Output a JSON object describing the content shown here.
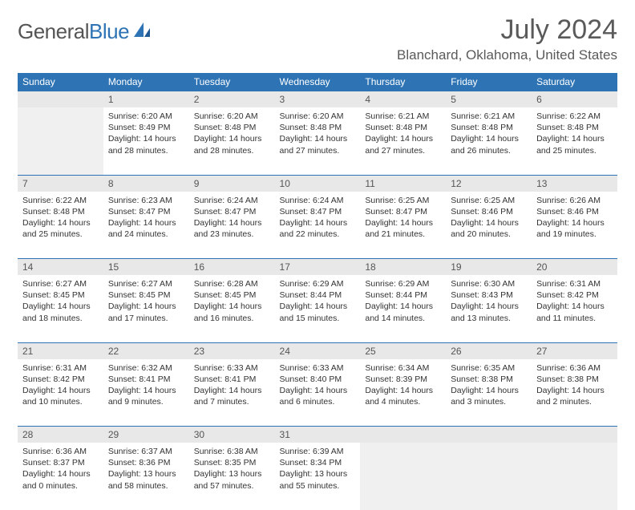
{
  "brand": {
    "text1": "General",
    "text2": "Blue"
  },
  "title": "July 2024",
  "location": "Blanchard, Oklahoma, United States",
  "days": [
    "Sunday",
    "Monday",
    "Tuesday",
    "Wednesday",
    "Thursday",
    "Friday",
    "Saturday"
  ],
  "colors": {
    "header_bg": "#2e74b5",
    "daynum_bg": "#e8e8e8",
    "divider": "#2e74b5"
  },
  "weeks": [
    [
      null,
      {
        "n": "1",
        "sr": "6:20 AM",
        "ss": "8:49 PM",
        "dl": "14 hours and 28 minutes."
      },
      {
        "n": "2",
        "sr": "6:20 AM",
        "ss": "8:48 PM",
        "dl": "14 hours and 28 minutes."
      },
      {
        "n": "3",
        "sr": "6:20 AM",
        "ss": "8:48 PM",
        "dl": "14 hours and 27 minutes."
      },
      {
        "n": "4",
        "sr": "6:21 AM",
        "ss": "8:48 PM",
        "dl": "14 hours and 27 minutes."
      },
      {
        "n": "5",
        "sr": "6:21 AM",
        "ss": "8:48 PM",
        "dl": "14 hours and 26 minutes."
      },
      {
        "n": "6",
        "sr": "6:22 AM",
        "ss": "8:48 PM",
        "dl": "14 hours and 25 minutes."
      }
    ],
    [
      {
        "n": "7",
        "sr": "6:22 AM",
        "ss": "8:48 PM",
        "dl": "14 hours and 25 minutes."
      },
      {
        "n": "8",
        "sr": "6:23 AM",
        "ss": "8:47 PM",
        "dl": "14 hours and 24 minutes."
      },
      {
        "n": "9",
        "sr": "6:24 AM",
        "ss": "8:47 PM",
        "dl": "14 hours and 23 minutes."
      },
      {
        "n": "10",
        "sr": "6:24 AM",
        "ss": "8:47 PM",
        "dl": "14 hours and 22 minutes."
      },
      {
        "n": "11",
        "sr": "6:25 AM",
        "ss": "8:47 PM",
        "dl": "14 hours and 21 minutes."
      },
      {
        "n": "12",
        "sr": "6:25 AM",
        "ss": "8:46 PM",
        "dl": "14 hours and 20 minutes."
      },
      {
        "n": "13",
        "sr": "6:26 AM",
        "ss": "8:46 PM",
        "dl": "14 hours and 19 minutes."
      }
    ],
    [
      {
        "n": "14",
        "sr": "6:27 AM",
        "ss": "8:45 PM",
        "dl": "14 hours and 18 minutes."
      },
      {
        "n": "15",
        "sr": "6:27 AM",
        "ss": "8:45 PM",
        "dl": "14 hours and 17 minutes."
      },
      {
        "n": "16",
        "sr": "6:28 AM",
        "ss": "8:45 PM",
        "dl": "14 hours and 16 minutes."
      },
      {
        "n": "17",
        "sr": "6:29 AM",
        "ss": "8:44 PM",
        "dl": "14 hours and 15 minutes."
      },
      {
        "n": "18",
        "sr": "6:29 AM",
        "ss": "8:44 PM",
        "dl": "14 hours and 14 minutes."
      },
      {
        "n": "19",
        "sr": "6:30 AM",
        "ss": "8:43 PM",
        "dl": "14 hours and 13 minutes."
      },
      {
        "n": "20",
        "sr": "6:31 AM",
        "ss": "8:42 PM",
        "dl": "14 hours and 11 minutes."
      }
    ],
    [
      {
        "n": "21",
        "sr": "6:31 AM",
        "ss": "8:42 PM",
        "dl": "14 hours and 10 minutes."
      },
      {
        "n": "22",
        "sr": "6:32 AM",
        "ss": "8:41 PM",
        "dl": "14 hours and 9 minutes."
      },
      {
        "n": "23",
        "sr": "6:33 AM",
        "ss": "8:41 PM",
        "dl": "14 hours and 7 minutes."
      },
      {
        "n": "24",
        "sr": "6:33 AM",
        "ss": "8:40 PM",
        "dl": "14 hours and 6 minutes."
      },
      {
        "n": "25",
        "sr": "6:34 AM",
        "ss": "8:39 PM",
        "dl": "14 hours and 4 minutes."
      },
      {
        "n": "26",
        "sr": "6:35 AM",
        "ss": "8:38 PM",
        "dl": "14 hours and 3 minutes."
      },
      {
        "n": "27",
        "sr": "6:36 AM",
        "ss": "8:38 PM",
        "dl": "14 hours and 2 minutes."
      }
    ],
    [
      {
        "n": "28",
        "sr": "6:36 AM",
        "ss": "8:37 PM",
        "dl": "14 hours and 0 minutes."
      },
      {
        "n": "29",
        "sr": "6:37 AM",
        "ss": "8:36 PM",
        "dl": "13 hours and 58 minutes."
      },
      {
        "n": "30",
        "sr": "6:38 AM",
        "ss": "8:35 PM",
        "dl": "13 hours and 57 minutes."
      },
      {
        "n": "31",
        "sr": "6:39 AM",
        "ss": "8:34 PM",
        "dl": "13 hours and 55 minutes."
      },
      null,
      null,
      null
    ]
  ],
  "labels": {
    "sunrise": "Sunrise:",
    "sunset": "Sunset:",
    "daylight": "Daylight:"
  }
}
